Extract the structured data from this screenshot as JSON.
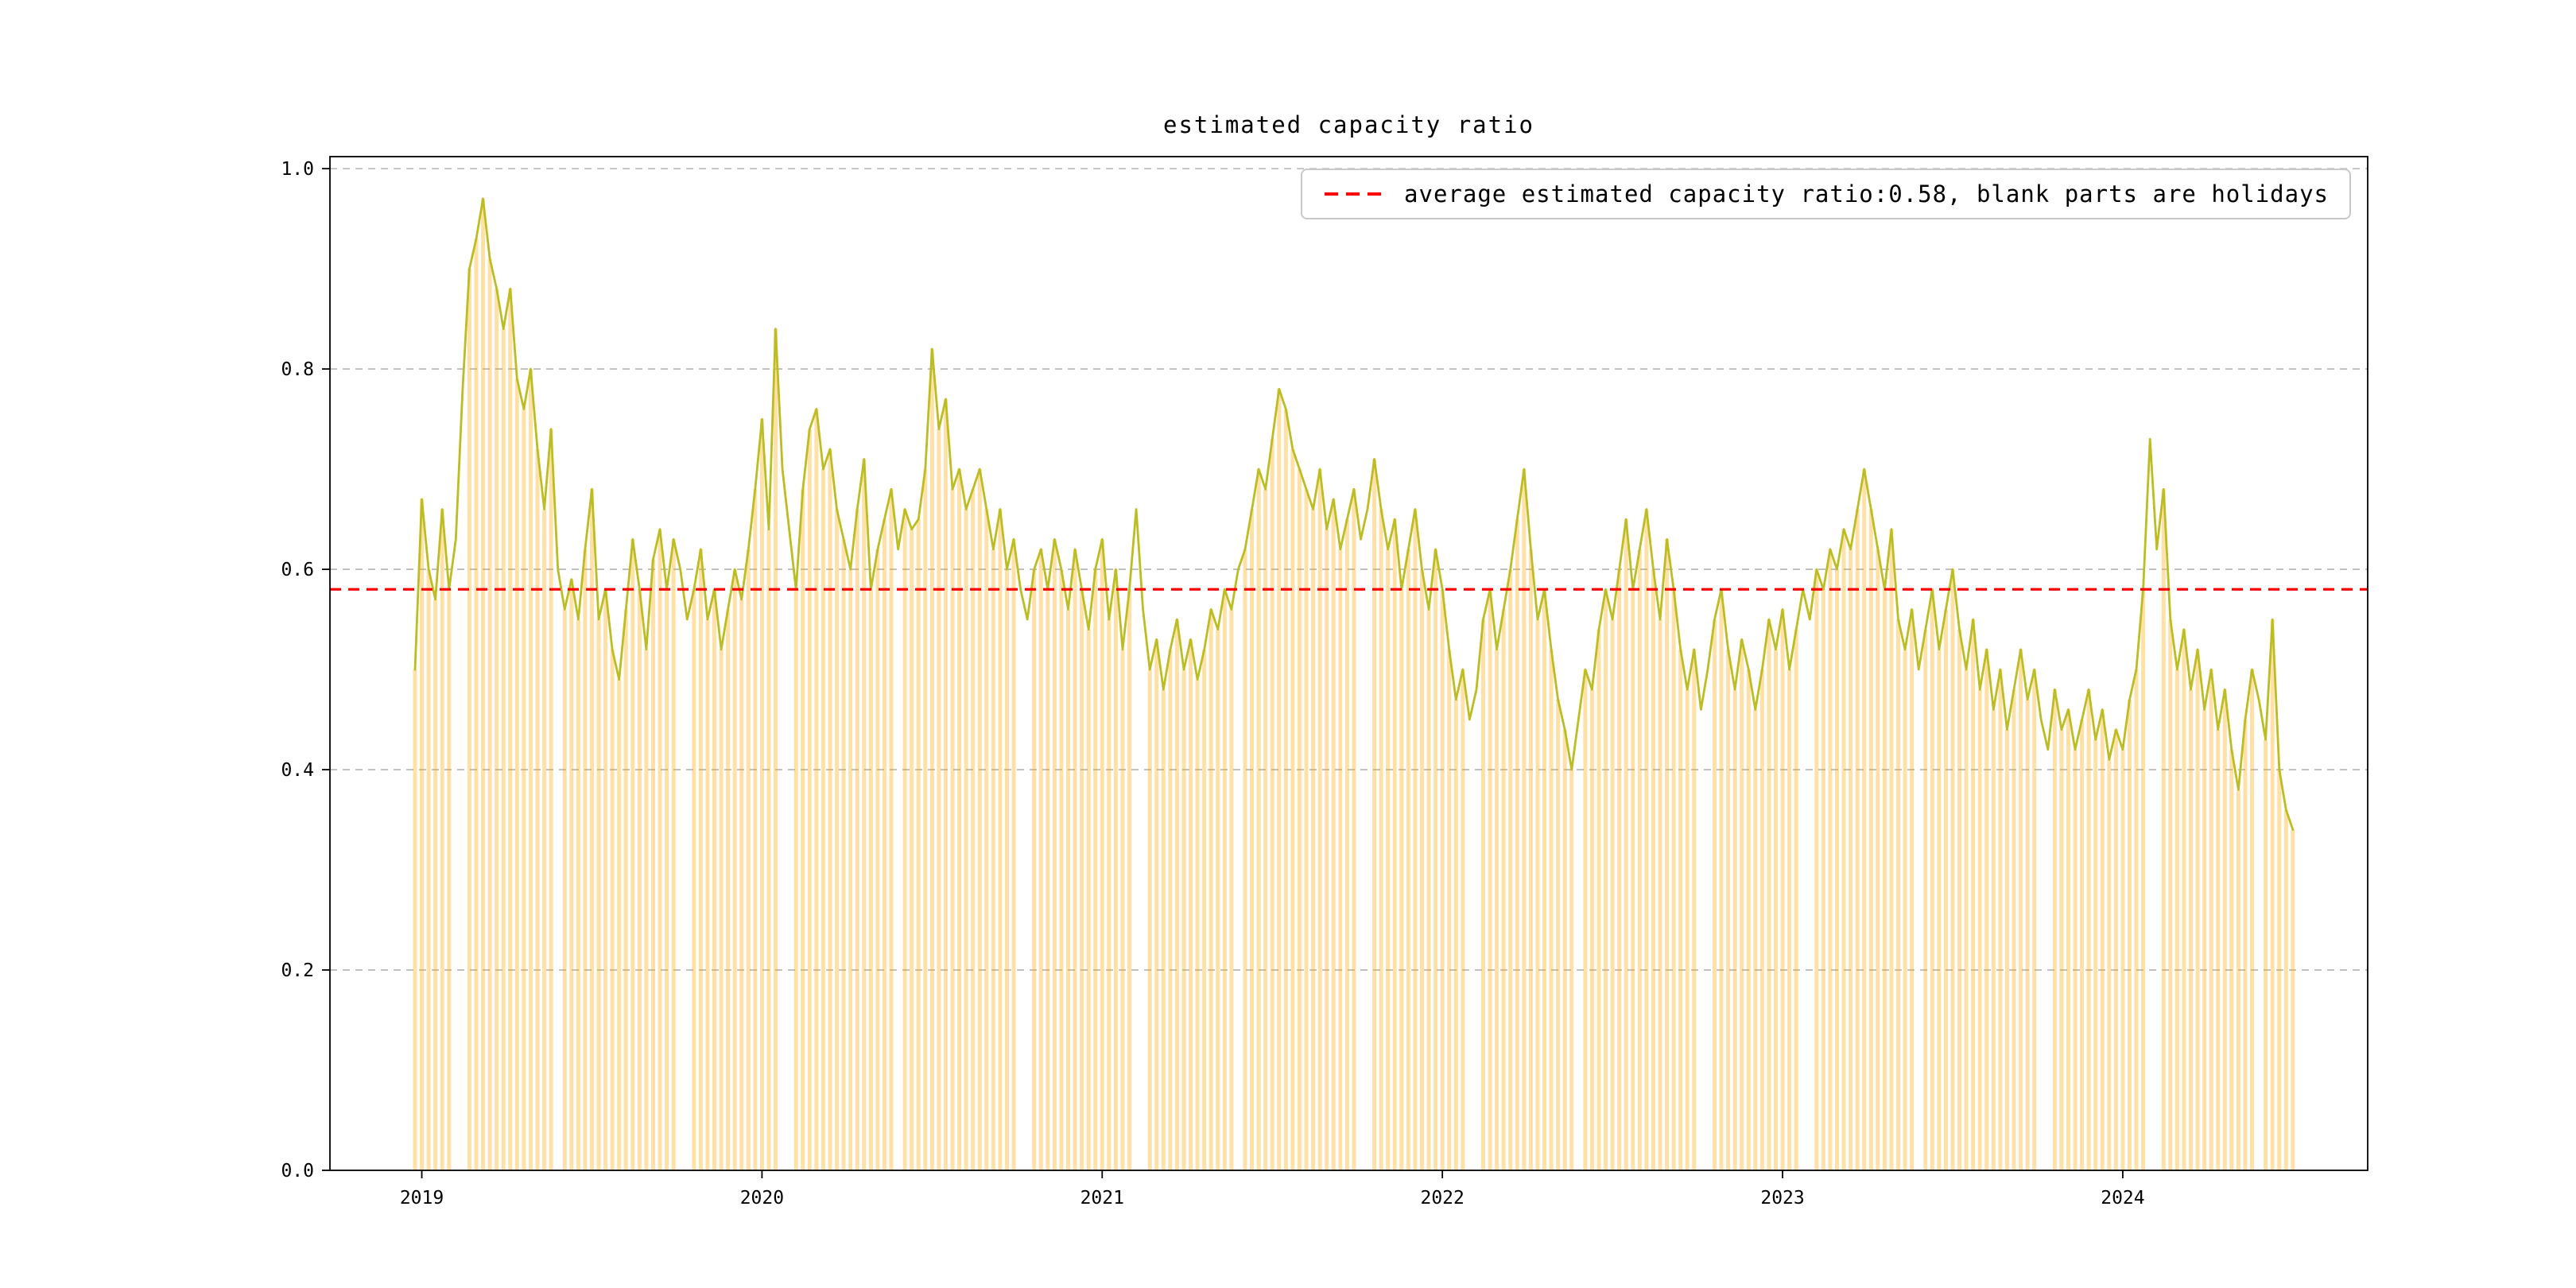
{
  "figure": {
    "title": "estimated capacity ratio",
    "background": "#ffffff"
  },
  "legend": {
    "label": "average estimated capacity ratio:0.58, blank parts are holidays",
    "line_color": "#ff0000",
    "position": "upper right"
  },
  "chart_data": {
    "type": "line",
    "title": "estimated capacity ratio",
    "series_name": "estimated capacity ratio (daily)",
    "xlabel": "",
    "ylabel": "",
    "x_unit": "decimal year",
    "x_start": 2018.98,
    "x_step": 0.02,
    "values": [
      0.5,
      0.67,
      0.6,
      0.57,
      0.66,
      0.58,
      0.63,
      0.78,
      0.9,
      0.93,
      0.97,
      0.91,
      0.88,
      0.84,
      0.88,
      0.79,
      0.76,
      0.8,
      0.72,
      0.66,
      0.74,
      0.6,
      0.56,
      0.59,
      0.55,
      0.62,
      0.68,
      0.55,
      0.58,
      0.52,
      0.49,
      0.56,
      0.63,
      0.58,
      0.52,
      0.61,
      0.64,
      0.58,
      0.63,
      0.6,
      0.55,
      0.58,
      0.62,
      0.55,
      0.58,
      0.52,
      0.56,
      0.6,
      0.57,
      0.62,
      0.68,
      0.75,
      0.64,
      0.84,
      0.7,
      0.64,
      0.58,
      0.68,
      0.74,
      0.76,
      0.7,
      0.72,
      0.66,
      0.63,
      0.6,
      0.66,
      0.71,
      0.58,
      0.62,
      0.65,
      0.68,
      0.62,
      0.66,
      0.64,
      0.65,
      0.7,
      0.82,
      0.74,
      0.77,
      0.68,
      0.7,
      0.66,
      0.68,
      0.7,
      0.66,
      0.62,
      0.66,
      0.6,
      0.63,
      0.58,
      0.55,
      0.6,
      0.62,
      0.58,
      0.63,
      0.6,
      0.56,
      0.62,
      0.58,
      0.54,
      0.6,
      0.63,
      0.55,
      0.6,
      0.52,
      0.58,
      0.66,
      0.56,
      0.5,
      0.53,
      0.48,
      0.52,
      0.55,
      0.5,
      0.53,
      0.49,
      0.52,
      0.56,
      0.54,
      0.58,
      0.56,
      0.6,
      0.62,
      0.66,
      0.7,
      0.68,
      0.73,
      0.78,
      0.76,
      0.72,
      0.7,
      0.68,
      0.66,
      0.7,
      0.64,
      0.67,
      0.62,
      0.65,
      0.68,
      0.63,
      0.66,
      0.71,
      0.66,
      0.62,
      0.65,
      0.58,
      0.62,
      0.66,
      0.6,
      0.56,
      0.62,
      0.58,
      0.52,
      0.47,
      0.5,
      0.45,
      0.48,
      0.55,
      0.58,
      0.52,
      0.56,
      0.6,
      0.65,
      0.7,
      0.62,
      0.55,
      0.58,
      0.52,
      0.47,
      0.44,
      0.4,
      0.45,
      0.5,
      0.48,
      0.54,
      0.58,
      0.55,
      0.6,
      0.65,
      0.58,
      0.62,
      0.66,
      0.6,
      0.55,
      0.63,
      0.58,
      0.52,
      0.48,
      0.52,
      0.46,
      0.5,
      0.55,
      0.58,
      0.52,
      0.48,
      0.53,
      0.5,
      0.46,
      0.5,
      0.55,
      0.52,
      0.56,
      0.5,
      0.54,
      0.58,
      0.55,
      0.6,
      0.58,
      0.62,
      0.6,
      0.64,
      0.62,
      0.66,
      0.7,
      0.66,
      0.62,
      0.58,
      0.64,
      0.55,
      0.52,
      0.56,
      0.5,
      0.54,
      0.58,
      0.52,
      0.56,
      0.6,
      0.54,
      0.5,
      0.55,
      0.48,
      0.52,
      0.46,
      0.5,
      0.44,
      0.48,
      0.52,
      0.47,
      0.5,
      0.45,
      0.42,
      0.48,
      0.44,
      0.46,
      0.42,
      0.45,
      0.48,
      0.43,
      0.46,
      0.41,
      0.44,
      0.42,
      0.47,
      0.5,
      0.58,
      0.73,
      0.62,
      0.68,
      0.55,
      0.5,
      0.54,
      0.48,
      0.52,
      0.46,
      0.5,
      0.44,
      0.48,
      0.42,
      0.38,
      0.45,
      0.5,
      0.47,
      0.43,
      0.55,
      0.4,
      0.36,
      0.34
    ],
    "average_line": {
      "value": 0.58,
      "color": "#ff0000",
      "style": "dashed",
      "label": "average estimated capacity ratio:0.58, blank parts are holidays"
    },
    "holiday_gaps": [
      [
        2019.095,
        2019.125
      ],
      [
        2019.395,
        2019.405
      ],
      [
        2019.755,
        2019.785
      ],
      [
        2020.055,
        2020.085
      ],
      [
        2020.395,
        2020.405
      ],
      [
        2020.755,
        2020.785
      ],
      [
        2021.095,
        2021.125
      ],
      [
        2021.395,
        2021.405
      ],
      [
        2021.755,
        2021.785
      ],
      [
        2022.075,
        2022.105
      ],
      [
        2022.395,
        2022.405
      ],
      [
        2022.755,
        2022.785
      ],
      [
        2023.055,
        2023.085
      ],
      [
        2023.395,
        2023.405
      ],
      [
        2023.755,
        2023.785
      ],
      [
        2024.075,
        2024.105
      ],
      [
        2024.395,
        2024.405
      ]
    ],
    "xlim": [
      2018.73,
      2024.72
    ],
    "ylim": [
      0.0,
      1.012
    ],
    "xticks": [
      2019,
      2020,
      2021,
      2022,
      2023,
      2024
    ],
    "xtick_labels": [
      "2019",
      "2020",
      "2021",
      "2022",
      "2023",
      "2024"
    ],
    "yticks": [
      0.0,
      0.2,
      0.4,
      0.6,
      0.8,
      1.0
    ],
    "ytick_labels": [
      "0.0",
      "0.2",
      "0.4",
      "0.6",
      "0.8",
      "1.0"
    ],
    "grid": "horizontal dashed gray",
    "legend_position": "upper right",
    "line_color": "#bcbd22",
    "bar_color": "#ffa500",
    "bar_opacity": 0.35
  }
}
